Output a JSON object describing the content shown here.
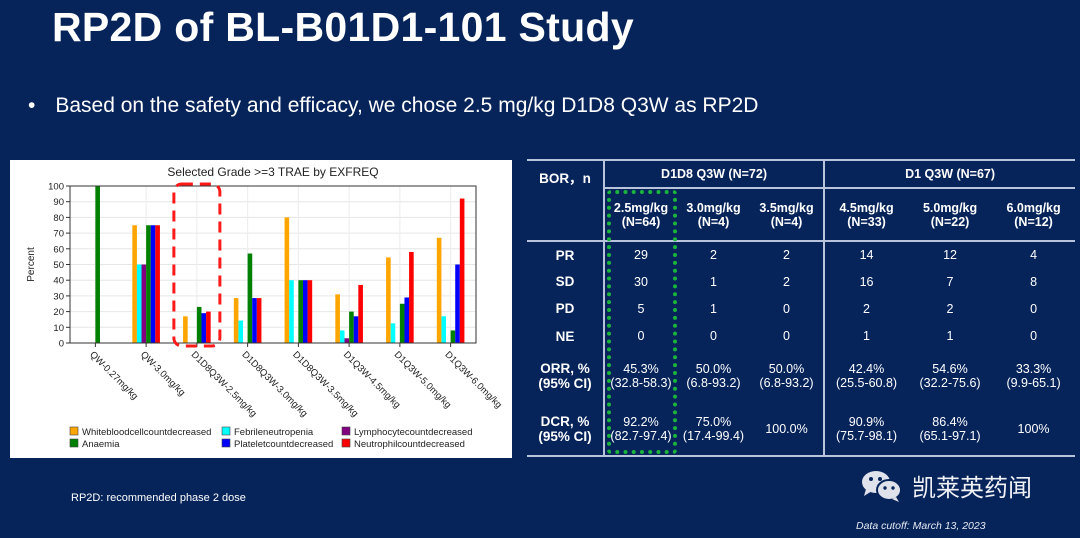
{
  "slide": {
    "title": "RP2D of BL-B01D1-101 Study",
    "bullet_marker": "•",
    "bullet": "Based on the safety and efficacy, we chose 2.5 mg/kg D1D8 Q3W as RP2D",
    "footnote": "RP2D:  recommended phase 2 dose",
    "data_cutoff": "Data cutoff: March 13, 2023",
    "brand": "凯莱英药闻"
  },
  "chart_data": {
    "type": "bar",
    "title": "Selected Grade >=3 TRAE by EXFREQ",
    "xlabel": "",
    "ylabel": "Percent",
    "ylim": [
      0,
      100
    ],
    "yticks": [
      0,
      10,
      20,
      30,
      40,
      50,
      60,
      70,
      80,
      90,
      100
    ],
    "grid": true,
    "legend_placement": "bottom",
    "categories": [
      "QW-0.27mg/kg",
      "QW-3.0mg/kg",
      "D1D8Q3W-2.5mg/kg",
      "D1D8Q3W-3.0mg/kg",
      "D1D8Q3W-3.5mg/kg",
      "D1Q3W-4.5mg/kg",
      "D1Q3W-5.0mg/kg",
      "D1Q3W-6.0mg/kg"
    ],
    "series": [
      {
        "name": "Whitebloodcellcountdecreased",
        "color": "#ffa500",
        "values": [
          0,
          75,
          17,
          28.6,
          80,
          31,
          54.5,
          67
        ]
      },
      {
        "name": "Febrileneutropenia",
        "color": "#00ffff",
        "values": [
          0,
          50,
          0,
          14.3,
          40,
          8,
          12.5,
          17
        ]
      },
      {
        "name": "Lymphocytecountdecreased",
        "color": "#800080",
        "values": [
          0,
          50,
          0,
          0,
          0,
          3,
          0,
          0
        ]
      },
      {
        "name": "Anaemia",
        "color": "#008000",
        "values": [
          100,
          75,
          23,
          57,
          40,
          20,
          25,
          8
        ]
      },
      {
        "name": "Plateletcountdecreased",
        "color": "#0000ff",
        "values": [
          0,
          75,
          19,
          28.6,
          40,
          17,
          29,
          50
        ]
      },
      {
        "name": "Neutrophilcountdecreased",
        "color": "#ff0000",
        "values": [
          0,
          75,
          20,
          28.6,
          40,
          37,
          58,
          92
        ]
      }
    ],
    "highlighted_category": "D1D8Q3W-2.5mg/kg"
  },
  "table": {
    "corner": "BOR，n",
    "groups": [
      {
        "label": "D1D8 Q3W (N=72)"
      },
      {
        "label": "D1 Q3W (N=67)"
      }
    ],
    "columns": [
      {
        "dose": "2.5mg/kg",
        "n": "(N=64)"
      },
      {
        "dose": "3.0mg/kg",
        "n": "(N=4)"
      },
      {
        "dose": "3.5mg/kg",
        "n": "(N=4)"
      },
      {
        "dose": "4.5mg/kg",
        "n": "(N=33)"
      },
      {
        "dose": "5.0mg/kg",
        "n": "(N=22)"
      },
      {
        "dose": "6.0mg/kg",
        "n": "(N=12)"
      }
    ],
    "rows": [
      {
        "label": "PR",
        "cells": [
          [
            "29"
          ],
          [
            "2"
          ],
          [
            "2"
          ],
          [
            "14"
          ],
          [
            "12"
          ],
          [
            "4"
          ]
        ]
      },
      {
        "label": "SD",
        "cells": [
          [
            "30"
          ],
          [
            "1"
          ],
          [
            "2"
          ],
          [
            "16"
          ],
          [
            "7"
          ],
          [
            "8"
          ]
        ]
      },
      {
        "label": "PD",
        "cells": [
          [
            "5"
          ],
          [
            "1"
          ],
          [
            "0"
          ],
          [
            "2"
          ],
          [
            "2"
          ],
          [
            "0"
          ]
        ]
      },
      {
        "label": "NE",
        "cells": [
          [
            "0"
          ],
          [
            "0"
          ],
          [
            "0"
          ],
          [
            "1"
          ],
          [
            "1"
          ],
          [
            "0"
          ]
        ]
      },
      {
        "label": "ORR, %",
        "label2": "(95% CI)",
        "cells": [
          [
            "45.3%",
            "(32.8-58.3)"
          ],
          [
            "50.0%",
            "(6.8-93.2)"
          ],
          [
            "50.0%",
            "(6.8-93.2)"
          ],
          [
            "42.4%",
            "(25.5-60.8)"
          ],
          [
            "54.6%",
            "(32.2-75.6)"
          ],
          [
            "33.3%",
            "(9.9-65.1)"
          ]
        ]
      },
      {
        "label": "DCR, %",
        "label2": "(95% CI)",
        "cells": [
          [
            "92.2%",
            "(82.7-97.4)"
          ],
          [
            "75.0%",
            "(17.4-99.4)"
          ],
          [
            "100.0%"
          ],
          [
            "90.9%",
            "(75.7-98.1)"
          ],
          [
            "86.4%",
            "(65.1-97.1)"
          ],
          [
            "100%"
          ]
        ]
      }
    ]
  }
}
